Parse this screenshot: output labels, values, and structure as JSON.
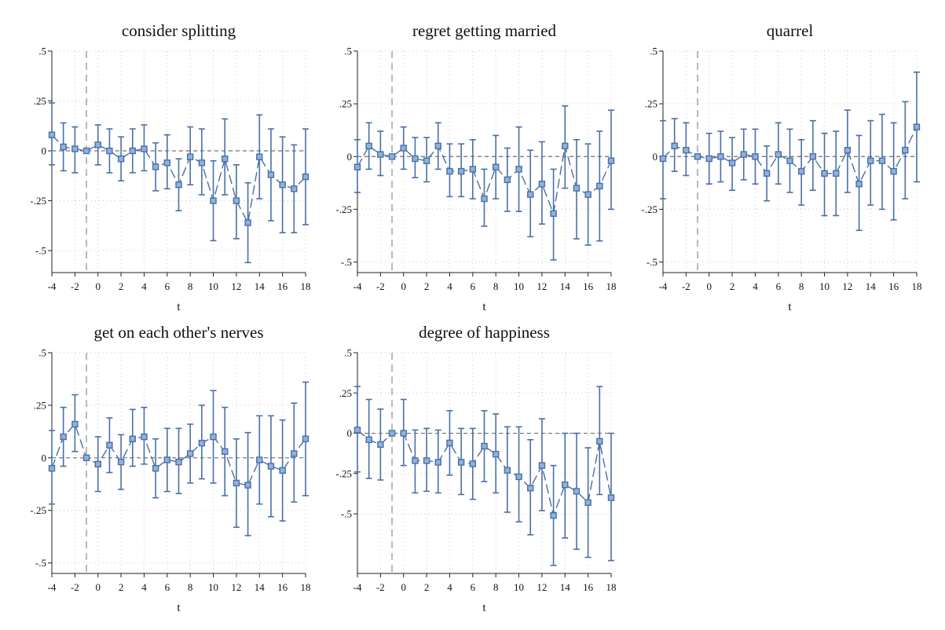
{
  "figure": {
    "colors": {
      "series": "#4a6fa5",
      "marker_fill": "#8fb1db",
      "gridline": "#c8c8c8",
      "reference_line": "#707070",
      "event_line": "#a8a8a8",
      "axis": "#222222"
    }
  },
  "chart_data": [
    {
      "type": "scatter",
      "title": "consider splitting",
      "xlabel": "t",
      "ylabel": "",
      "x": [
        -4,
        -3,
        -2,
        -1,
        0,
        1,
        2,
        3,
        4,
        5,
        6,
        7,
        8,
        9,
        10,
        11,
        12,
        13,
        14,
        15,
        16,
        17,
        18
      ],
      "y": [
        0.08,
        0.02,
        0.01,
        0,
        0.03,
        0,
        -0.04,
        0,
        0.01,
        -0.08,
        -0.06,
        -0.17,
        -0.03,
        -0.06,
        -0.25,
        -0.04,
        -0.25,
        -0.36,
        -0.03,
        -0.12,
        -0.17,
        -0.19,
        -0.13
      ],
      "ci_low": [
        -0.07,
        -0.1,
        -0.11,
        0,
        -0.07,
        -0.11,
        -0.15,
        -0.11,
        -0.1,
        -0.2,
        -0.19,
        -0.3,
        -0.17,
        -0.22,
        -0.45,
        -0.22,
        -0.44,
        -0.56,
        -0.24,
        -0.35,
        -0.41,
        -0.41,
        -0.37
      ],
      "ci_high": [
        0.24,
        0.14,
        0.12,
        0,
        0.13,
        0.11,
        0.07,
        0.11,
        0.13,
        0.04,
        0.08,
        -0.04,
        0.12,
        0.11,
        -0.05,
        0.16,
        -0.07,
        -0.16,
        0.18,
        0.11,
        0.07,
        0.03,
        0.11
      ],
      "xticks": [
        -4,
        -2,
        0,
        2,
        4,
        6,
        8,
        10,
        12,
        14,
        16,
        18
      ],
      "yticks": [
        0.5,
        0.25,
        0,
        -0.25,
        -0.5
      ],
      "ytick_labels": [
        ".5",
        ".25",
        "0",
        "-.25",
        "-.5"
      ],
      "xlim": [
        -4,
        18
      ],
      "ylim": [
        -0.61,
        0.5
      ],
      "event_x": -1,
      "reference_y": 0,
      "grid": true
    },
    {
      "type": "scatter",
      "title": "regret getting married",
      "xlabel": "t",
      "ylabel": "",
      "x": [
        -4,
        -3,
        -2,
        -1,
        0,
        1,
        2,
        3,
        4,
        5,
        6,
        7,
        8,
        9,
        10,
        11,
        12,
        13,
        14,
        15,
        16,
        17,
        18
      ],
      "y": [
        -0.05,
        0.05,
        0.01,
        0,
        0.04,
        -0.01,
        -0.02,
        0.05,
        -0.07,
        -0.07,
        -0.06,
        -0.2,
        -0.05,
        -0.11,
        -0.06,
        -0.18,
        -0.13,
        -0.27,
        0.05,
        -0.15,
        -0.18,
        -0.14,
        -0.02
      ],
      "ci_low": [
        -0.17,
        -0.06,
        -0.09,
        0,
        -0.06,
        -0.1,
        -0.12,
        -0.06,
        -0.19,
        -0.19,
        -0.2,
        -0.33,
        -0.2,
        -0.26,
        -0.26,
        -0.38,
        -0.32,
        -0.49,
        -0.15,
        -0.39,
        -0.42,
        -0.4,
        -0.25
      ],
      "ci_high": [
        0.08,
        0.16,
        0.12,
        0,
        0.14,
        0.09,
        0.09,
        0.16,
        0.06,
        0.06,
        0.08,
        -0.06,
        0.1,
        0.04,
        0.14,
        0.03,
        0.07,
        -0.06,
        0.24,
        0.08,
        0.06,
        0.12,
        0.22
      ],
      "xticks": [
        -4,
        -2,
        0,
        2,
        4,
        6,
        8,
        10,
        12,
        14,
        16,
        18
      ],
      "yticks": [
        0.5,
        0.25,
        0,
        -0.25,
        -0.5
      ],
      "ytick_labels": [
        ".5",
        ".25",
        "0",
        "-.25",
        "-.5"
      ],
      "xlim": [
        -4,
        18
      ],
      "ylim": [
        -0.55,
        0.5
      ],
      "event_x": -1,
      "reference_y": 0,
      "grid": true
    },
    {
      "type": "scatter",
      "title": "quarrel",
      "xlabel": "t",
      "ylabel": "",
      "x": [
        -4,
        -3,
        -2,
        -1,
        0,
        1,
        2,
        3,
        4,
        5,
        6,
        7,
        8,
        9,
        10,
        11,
        12,
        13,
        14,
        15,
        16,
        17,
        18
      ],
      "y": [
        -0.01,
        0.05,
        0.03,
        0,
        -0.01,
        0,
        -0.03,
        0.01,
        0,
        -0.08,
        0.01,
        -0.02,
        -0.07,
        0,
        -0.08,
        -0.08,
        0.03,
        -0.13,
        -0.02,
        -0.02,
        -0.07,
        0.03,
        0.14
      ],
      "ci_low": [
        -0.2,
        -0.07,
        -0.09,
        0,
        -0.13,
        -0.12,
        -0.16,
        -0.11,
        -0.13,
        -0.21,
        -0.13,
        -0.17,
        -0.23,
        -0.16,
        -0.28,
        -0.28,
        -0.17,
        -0.35,
        -0.23,
        -0.25,
        -0.3,
        -0.2,
        -0.12
      ],
      "ci_high": [
        0.17,
        0.18,
        0.16,
        0,
        0.11,
        0.12,
        0.09,
        0.13,
        0.13,
        0.05,
        0.16,
        0.13,
        0.08,
        0.17,
        0.11,
        0.12,
        0.22,
        0.1,
        0.17,
        0.2,
        0.16,
        0.26,
        0.4
      ],
      "xticks": [
        -4,
        -2,
        0,
        2,
        4,
        6,
        8,
        10,
        12,
        14,
        16,
        18
      ],
      "yticks": [
        0.5,
        0.25,
        0,
        -0.25,
        -0.5
      ],
      "ytick_labels": [
        ".5",
        ".25",
        "0",
        "-.25",
        "-.5"
      ],
      "xlim": [
        -4,
        18
      ],
      "ylim": [
        -0.55,
        0.5
      ],
      "event_x": -1,
      "reference_y": 0,
      "grid": true
    },
    {
      "type": "scatter",
      "title": "get on each other's nerves",
      "xlabel": "t",
      "ylabel": "",
      "x": [
        -4,
        -3,
        -2,
        -1,
        0,
        1,
        2,
        3,
        4,
        5,
        6,
        7,
        8,
        9,
        10,
        11,
        12,
        13,
        14,
        15,
        16,
        17,
        18
      ],
      "y": [
        -0.05,
        0.1,
        0.16,
        0,
        -0.03,
        0.06,
        -0.02,
        0.09,
        0.1,
        -0.05,
        -0.01,
        -0.02,
        0.02,
        0.07,
        0.1,
        0.03,
        -0.12,
        -0.13,
        -0.01,
        -0.04,
        -0.06,
        0.02,
        0.09
      ],
      "ci_low": [
        -0.22,
        -0.04,
        0.03,
        0,
        -0.16,
        -0.07,
        -0.15,
        -0.04,
        -0.03,
        -0.19,
        -0.16,
        -0.17,
        -0.12,
        -0.1,
        -0.12,
        -0.18,
        -0.33,
        -0.37,
        -0.22,
        -0.28,
        -0.3,
        -0.21,
        -0.18
      ],
      "ci_high": [
        0.13,
        0.24,
        0.3,
        0,
        0.1,
        0.19,
        0.11,
        0.23,
        0.24,
        0.09,
        0.14,
        0.14,
        0.16,
        0.25,
        0.32,
        0.24,
        0.09,
        0.12,
        0.2,
        0.2,
        0.18,
        0.26,
        0.36
      ],
      "xticks": [
        -4,
        -2,
        0,
        2,
        4,
        6,
        8,
        10,
        12,
        14,
        16,
        18
      ],
      "yticks": [
        0.5,
        0.25,
        0,
        -0.25,
        -0.5
      ],
      "ytick_labels": [
        ".5",
        ".25",
        "0",
        "-.25",
        "-.5"
      ],
      "xlim": [
        -4,
        18
      ],
      "ylim": [
        -0.55,
        0.5
      ],
      "event_x": -1,
      "reference_y": 0,
      "grid": true
    },
    {
      "type": "scatter",
      "title": "degree of happiness",
      "xlabel": "t",
      "ylabel": "",
      "x": [
        -4,
        -3,
        -2,
        -1,
        0,
        1,
        2,
        3,
        4,
        5,
        6,
        7,
        8,
        9,
        10,
        11,
        12,
        13,
        14,
        15,
        16,
        17,
        18
      ],
      "y": [
        0.02,
        -0.04,
        -0.07,
        0,
        0,
        -0.17,
        -0.17,
        -0.18,
        -0.06,
        -0.18,
        -0.19,
        -0.08,
        -0.13,
        -0.23,
        -0.27,
        -0.34,
        -0.2,
        -0.51,
        -0.32,
        -0.36,
        -0.43,
        -0.05,
        -0.4
      ],
      "ci_low": [
        -0.24,
        -0.28,
        -0.29,
        0,
        -0.2,
        -0.37,
        -0.36,
        -0.37,
        -0.26,
        -0.38,
        -0.41,
        -0.3,
        -0.37,
        -0.49,
        -0.55,
        -0.63,
        -0.48,
        -0.82,
        -0.65,
        -0.72,
        -0.77,
        -0.38,
        -0.79
      ],
      "ci_high": [
        0.29,
        0.21,
        0.15,
        0,
        0.21,
        0.02,
        0.03,
        0.02,
        0.14,
        0.03,
        0.03,
        0.14,
        0.12,
        0.04,
        0.04,
        -0.04,
        0.09,
        -0.2,
        0.0,
        0.0,
        -0.09,
        0.29,
        0.0
      ],
      "xticks": [
        -4,
        -2,
        0,
        2,
        4,
        6,
        8,
        10,
        12,
        14,
        16,
        18
      ],
      "yticks": [
        0.5,
        0.25,
        0,
        -0.25,
        -0.5
      ],
      "ytick_labels": [
        ".5",
        ".25",
        "0",
        "-.25",
        "-.5"
      ],
      "xlim": [
        -4,
        18
      ],
      "ylim": [
        -0.87,
        0.5
      ],
      "event_x": -1,
      "reference_y": 0,
      "grid": true
    }
  ]
}
